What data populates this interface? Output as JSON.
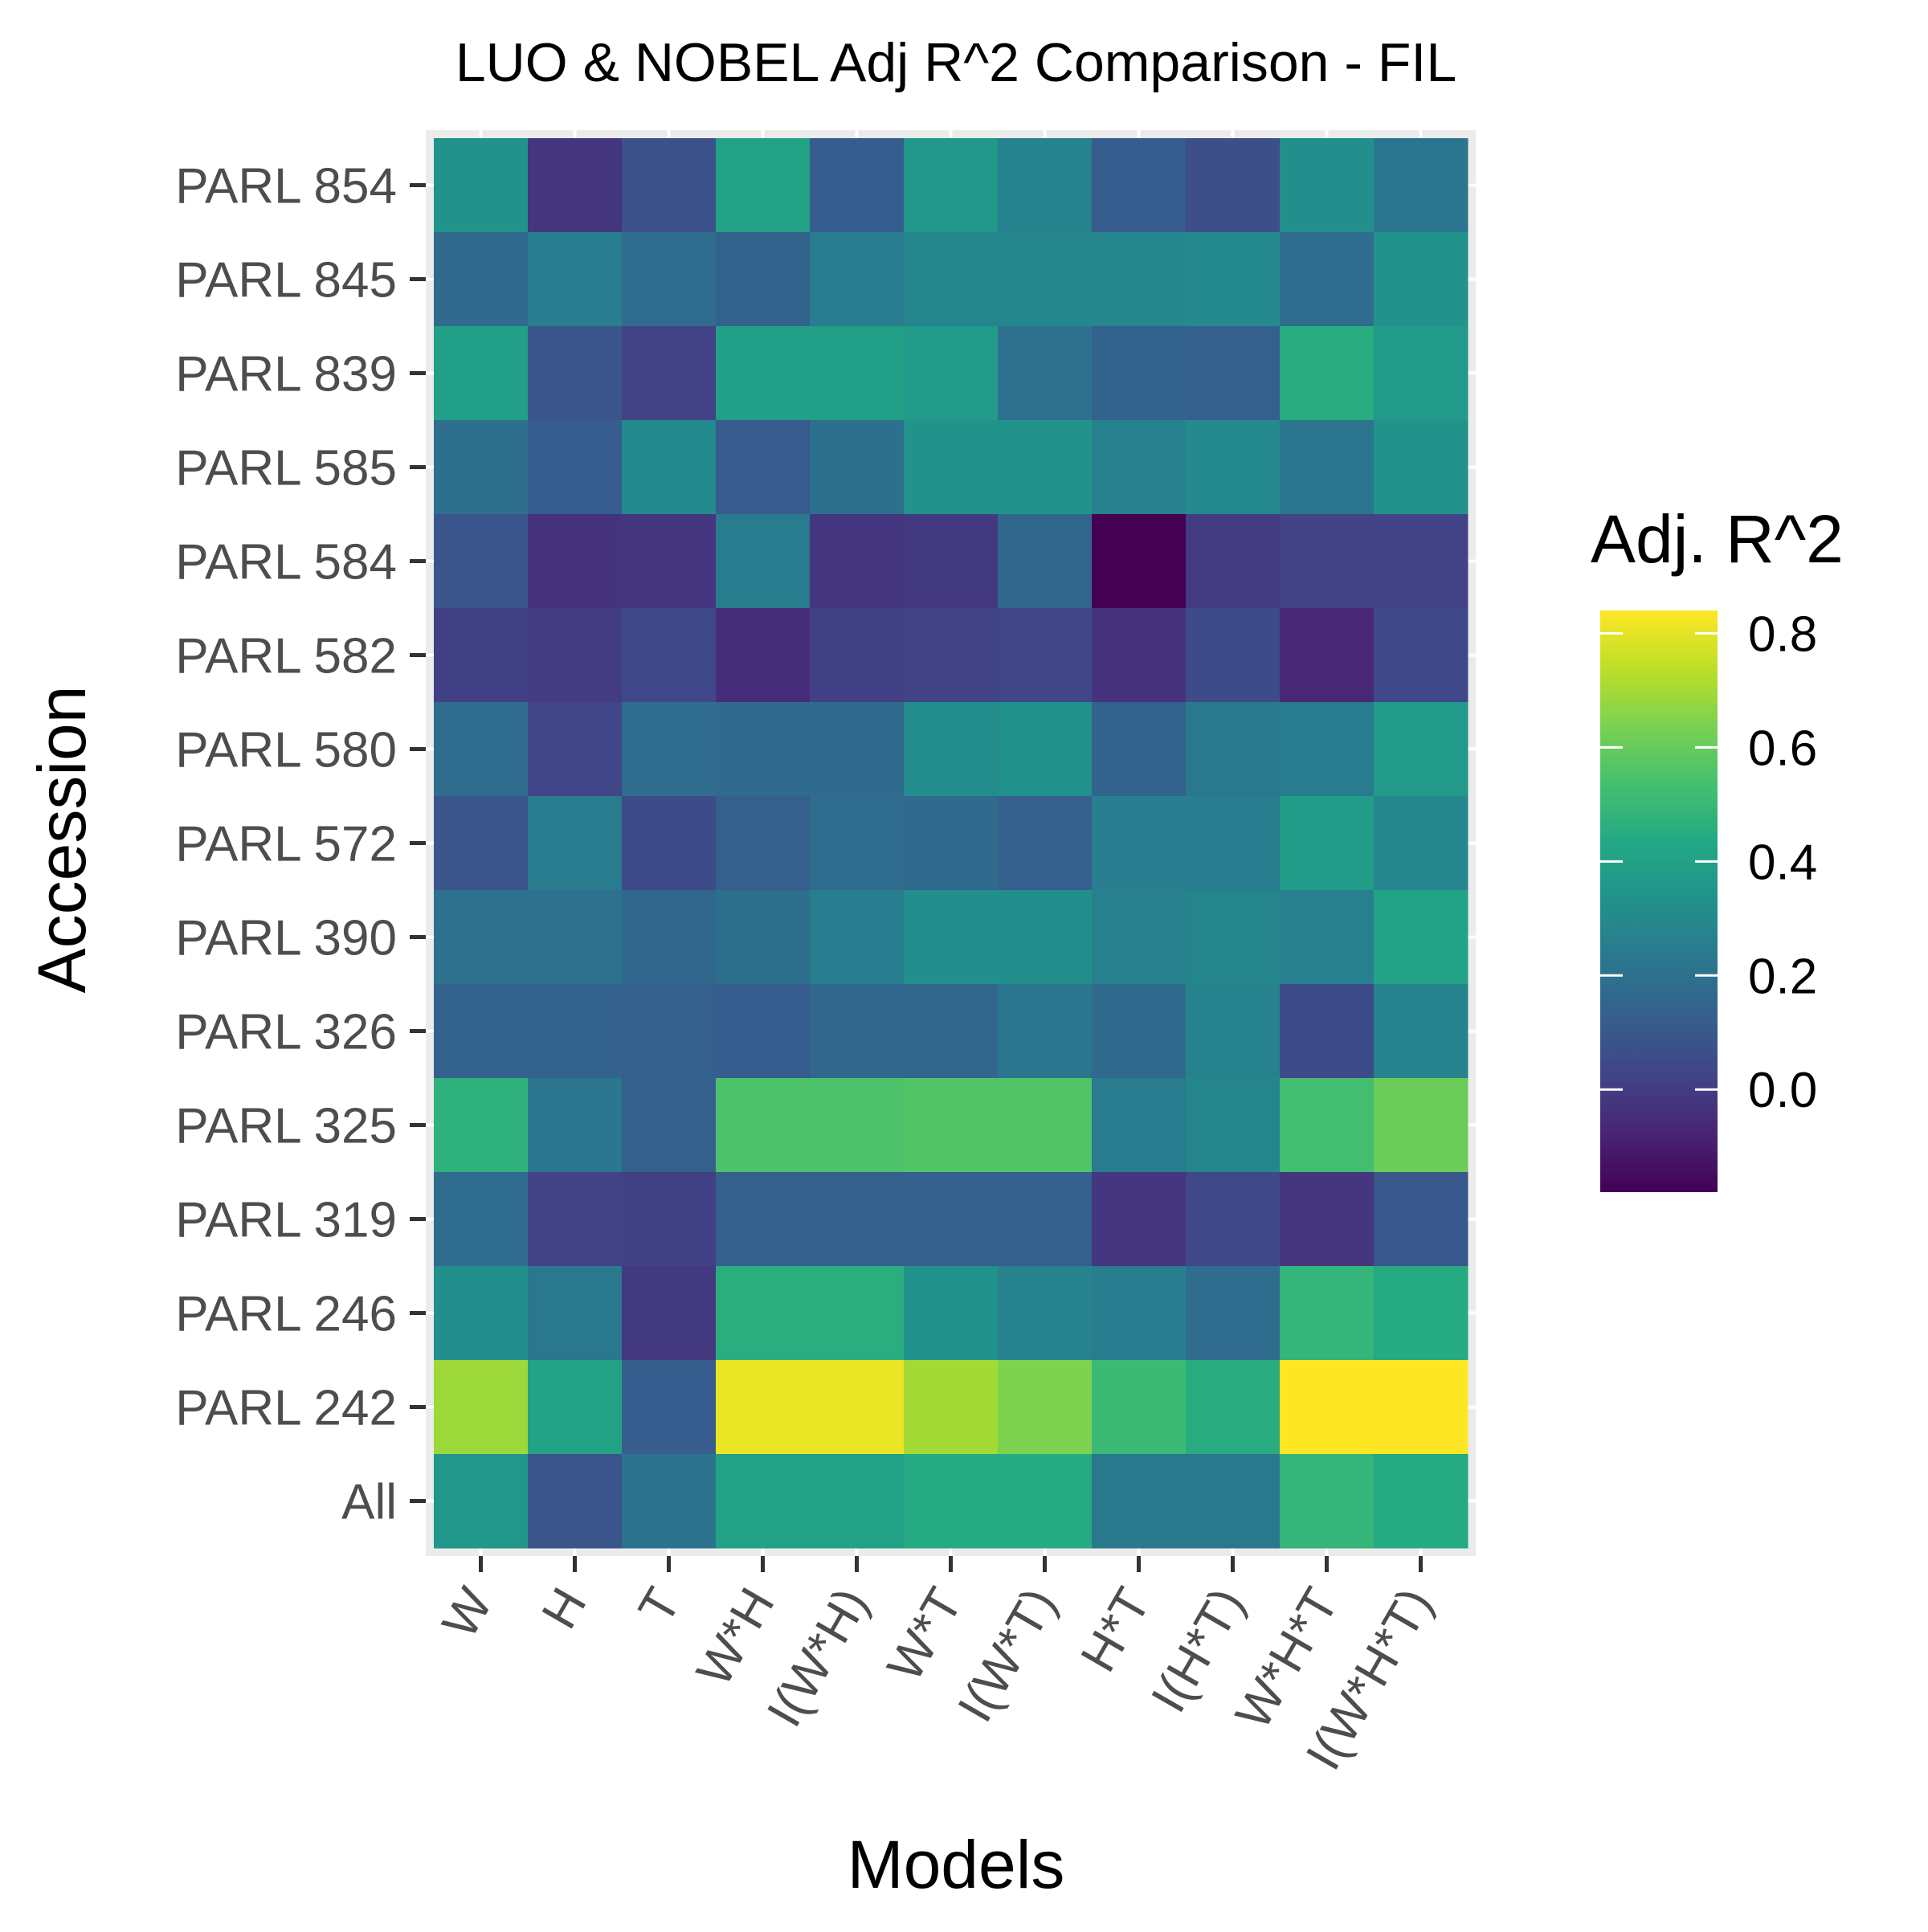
{
  "chart_data": {
    "type": "heatmap",
    "title": "LUO & NOBEL Adj R^2 Comparison - FIL",
    "xlabel": "Models",
    "ylabel": "Accession",
    "x_categories": [
      "W",
      "H",
      "T",
      "W*H",
      "I(W*H)",
      "W*T",
      "I(W*T)",
      "H*T",
      "I(H*T)",
      "W*H*T",
      "I(W*H*T)"
    ],
    "y_categories": [
      "PARL 854",
      "PARL 845",
      "PARL 839",
      "PARL 585",
      "PARL 584",
      "PARL 582",
      "PARL 580",
      "PARL 572",
      "PARL 390",
      "PARL 326",
      "PARL 325",
      "PARL 319",
      "PARL 246",
      "PARL 242",
      "All"
    ],
    "values": [
      [
        0.34,
        -0.02,
        0.07,
        0.4,
        0.12,
        0.36,
        0.27,
        0.12,
        0.06,
        0.32,
        0.22
      ],
      [
        0.17,
        0.25,
        0.18,
        0.14,
        0.25,
        0.28,
        0.29,
        0.29,
        0.3,
        0.18,
        0.34
      ],
      [
        0.39,
        0.09,
        0.02,
        0.39,
        0.39,
        0.37,
        0.2,
        0.14,
        0.13,
        0.45,
        0.37
      ],
      [
        0.19,
        0.12,
        0.3,
        0.11,
        0.19,
        0.34,
        0.34,
        0.26,
        0.3,
        0.22,
        0.34
      ],
      [
        0.09,
        -0.03,
        -0.02,
        0.24,
        -0.02,
        -0.01,
        0.16,
        -0.18,
        0.0,
        0.02,
        0.02
      ],
      [
        0.01,
        0.0,
        0.04,
        -0.05,
        0.01,
        0.02,
        0.03,
        -0.03,
        0.05,
        -0.07,
        0.04
      ],
      [
        0.18,
        0.03,
        0.18,
        0.17,
        0.17,
        0.31,
        0.33,
        0.14,
        0.23,
        0.24,
        0.37
      ],
      [
        0.09,
        0.24,
        0.05,
        0.13,
        0.18,
        0.17,
        0.13,
        0.25,
        0.25,
        0.38,
        0.29
      ],
      [
        0.2,
        0.2,
        0.16,
        0.19,
        0.25,
        0.32,
        0.32,
        0.26,
        0.28,
        0.26,
        0.41
      ],
      [
        0.14,
        0.14,
        0.13,
        0.12,
        0.16,
        0.16,
        0.22,
        0.17,
        0.27,
        0.05,
        0.27
      ],
      [
        0.47,
        0.22,
        0.13,
        0.55,
        0.55,
        0.56,
        0.56,
        0.24,
        0.28,
        0.53,
        0.61
      ],
      [
        0.18,
        0.02,
        0.01,
        0.13,
        0.13,
        0.13,
        0.13,
        -0.02,
        0.04,
        -0.02,
        0.1
      ],
      [
        0.32,
        0.23,
        -0.01,
        0.46,
        0.46,
        0.33,
        0.27,
        0.25,
        0.18,
        0.49,
        0.44
      ],
      [
        0.69,
        0.41,
        0.12,
        0.81,
        0.81,
        0.7,
        0.64,
        0.51,
        0.45,
        0.84,
        0.84
      ],
      [
        0.35,
        0.09,
        0.21,
        0.4,
        0.4,
        0.44,
        0.44,
        0.23,
        0.23,
        0.49,
        0.44
      ]
    ],
    "colorscale": "viridis",
    "color_range": [
      -0.18,
      0.84
    ],
    "legend": {
      "title": "Adj. R^2",
      "ticks": [
        0.8,
        0.6,
        0.4,
        0.2,
        0.0
      ],
      "tick_labels": [
        "0.8",
        "0.6",
        "0.4",
        "0.2",
        "0.0"
      ],
      "placement": "right"
    },
    "panel_background": "#ebebeb",
    "grid": true
  }
}
